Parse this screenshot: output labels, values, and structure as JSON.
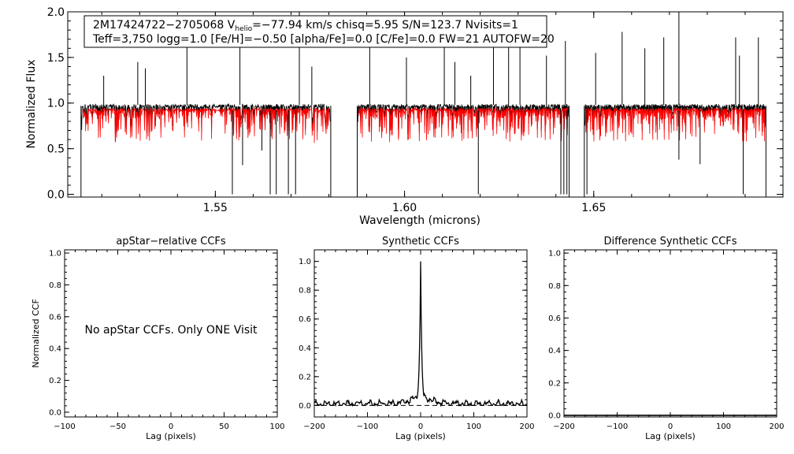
{
  "chart_data": [
    {
      "id": "spectrum",
      "type": "line",
      "title": "",
      "info_line_1": {
        "star_id": "2M17424722−2705068",
        "v_prefix": "V",
        "v_sub": "helio",
        "v_value": "=−77.94 km/s",
        "rest": "chisq=5.95  S/N=123.7  Nvisits=1"
      },
      "info_line_2": "Teff=3,750 logg=1.0 [Fe/H]=−0.50 [alpha/Fe]=0.0 [C/Fe]=0.0 FW=21 AUTOFW=20",
      "xlabel": "Wavelength (microns)",
      "ylabel": "Normalized Flux",
      "xlim": [
        1.511,
        1.7
      ],
      "ylim": [
        -0.03,
        2.0
      ],
      "xticks": [
        1.55,
        1.6,
        1.65
      ],
      "xtick_labels": [
        "1.55",
        "1.60",
        "1.65"
      ],
      "yticks": [
        0.0,
        0.5,
        1.0,
        1.5,
        2.0
      ],
      "ytick_labels": [
        "0.0",
        "0.5",
        "1.0",
        "1.5",
        "2.0"
      ],
      "chips": [
        [
          1.5145,
          1.5805
        ],
        [
          1.5875,
          1.6435
        ],
        [
          1.6475,
          1.6955
        ]
      ],
      "series": [
        {
          "name": "observed",
          "color": "#000000",
          "baseline": 0.97
        },
        {
          "name": "synthetic",
          "color": "#ff0000",
          "baseline": 0.93
        }
      ],
      "emission_spikes": [
        [
          1.5205,
          1.3
        ],
        [
          1.5295,
          1.45
        ],
        [
          1.5315,
          1.38
        ],
        [
          1.5425,
          1.62
        ],
        [
          1.5565,
          1.78
        ],
        [
          1.5722,
          2.0
        ],
        [
          1.5755,
          1.4
        ],
        [
          1.5908,
          1.72
        ],
        [
          1.6005,
          1.5
        ],
        [
          1.6105,
          1.88
        ],
        [
          1.6133,
          1.45
        ],
        [
          1.6175,
          1.3
        ],
        [
          1.6235,
          1.78
        ],
        [
          1.6275,
          1.62
        ],
        [
          1.6305,
          1.95
        ],
        [
          1.6375,
          1.52
        ],
        [
          1.6425,
          1.68
        ],
        [
          1.6505,
          1.55
        ],
        [
          1.6575,
          1.78
        ],
        [
          1.6635,
          1.6
        ],
        [
          1.6685,
          1.72
        ],
        [
          1.6725,
          2.0
        ],
        [
          1.6875,
          1.72
        ],
        [
          1.6885,
          1.52
        ],
        [
          1.6935,
          1.72
        ]
      ],
      "absorption_spikes": [
        [
          1.5545,
          0.0
        ],
        [
          1.5572,
          0.32
        ],
        [
          1.5623,
          0.48
        ],
        [
          1.5645,
          0.0
        ],
        [
          1.5661,
          0.0
        ],
        [
          1.5693,
          0.0
        ],
        [
          1.5712,
          0.0
        ],
        [
          1.6195,
          0.0
        ],
        [
          1.6413,
          0.0
        ],
        [
          1.6421,
          0.0
        ],
        [
          1.6429,
          0.0
        ],
        [
          1.6482,
          0.0
        ],
        [
          1.6725,
          0.38
        ],
        [
          1.6781,
          0.33
        ],
        [
          1.6895,
          0.0
        ]
      ]
    },
    {
      "id": "apstar-ccf",
      "type": "line",
      "title": "apStar−relative CCFs",
      "xlabel": "Lag (pixels)",
      "ylabel": "Normalized CCF",
      "xlim": [
        -100,
        100
      ],
      "ylim": [
        -0.03,
        1.02
      ],
      "xticks": [
        -100,
        -50,
        0,
        50,
        100
      ],
      "xtick_labels": [
        "−100",
        "−50",
        "0",
        "50",
        "100"
      ],
      "yticks": [
        0.0,
        0.2,
        0.4,
        0.6,
        0.8,
        1.0
      ],
      "ytick_labels": [
        "0.0",
        "0.2",
        "0.4",
        "0.6",
        "0.8",
        "1.0"
      ],
      "annotation": "No apStar CCFs.  Only ONE Visit",
      "series": []
    },
    {
      "id": "synthetic-ccf",
      "type": "line",
      "title": "Synthetic CCFs",
      "xlabel": "Lag (pixels)",
      "ylabel": "",
      "xlim": [
        -200,
        200
      ],
      "ylim": [
        -0.08,
        1.08
      ],
      "xticks": [
        -200,
        -100,
        0,
        100,
        200
      ],
      "xtick_labels": [
        "−200",
        "−100",
        "0",
        "100",
        "200"
      ],
      "yticks": [
        0.0,
        0.2,
        0.4,
        0.6,
        0.8,
        1.0
      ],
      "ytick_labels": [
        "0.0",
        "0.2",
        "0.4",
        "0.6",
        "0.8",
        "1.0"
      ],
      "zero_line": 0.0,
      "series": [
        {
          "name": "synthetic-ccf",
          "color": "#000000",
          "peak_lag": 0,
          "peak_value": 1.0,
          "baseline": 0.01
        }
      ]
    },
    {
      "id": "difference-ccf",
      "type": "line",
      "title": "Difference Synthetic CCFs",
      "xlabel": "Lag (pixels)",
      "ylabel": "",
      "xlim": [
        -200,
        200
      ],
      "ylim": [
        -0.01,
        1.02
      ],
      "xticks": [
        -200,
        -100,
        0,
        100,
        200
      ],
      "xtick_labels": [
        "−200",
        "−100",
        "0",
        "100",
        "200"
      ],
      "yticks": [
        0.0,
        0.2,
        0.4,
        0.6,
        0.8,
        1.0
      ],
      "ytick_labels": [
        "0.0",
        "0.2",
        "0.4",
        "0.6",
        "0.8",
        "1.0"
      ],
      "series": [
        {
          "name": "difference",
          "color": "#000000",
          "constant": 0.0
        }
      ]
    }
  ]
}
